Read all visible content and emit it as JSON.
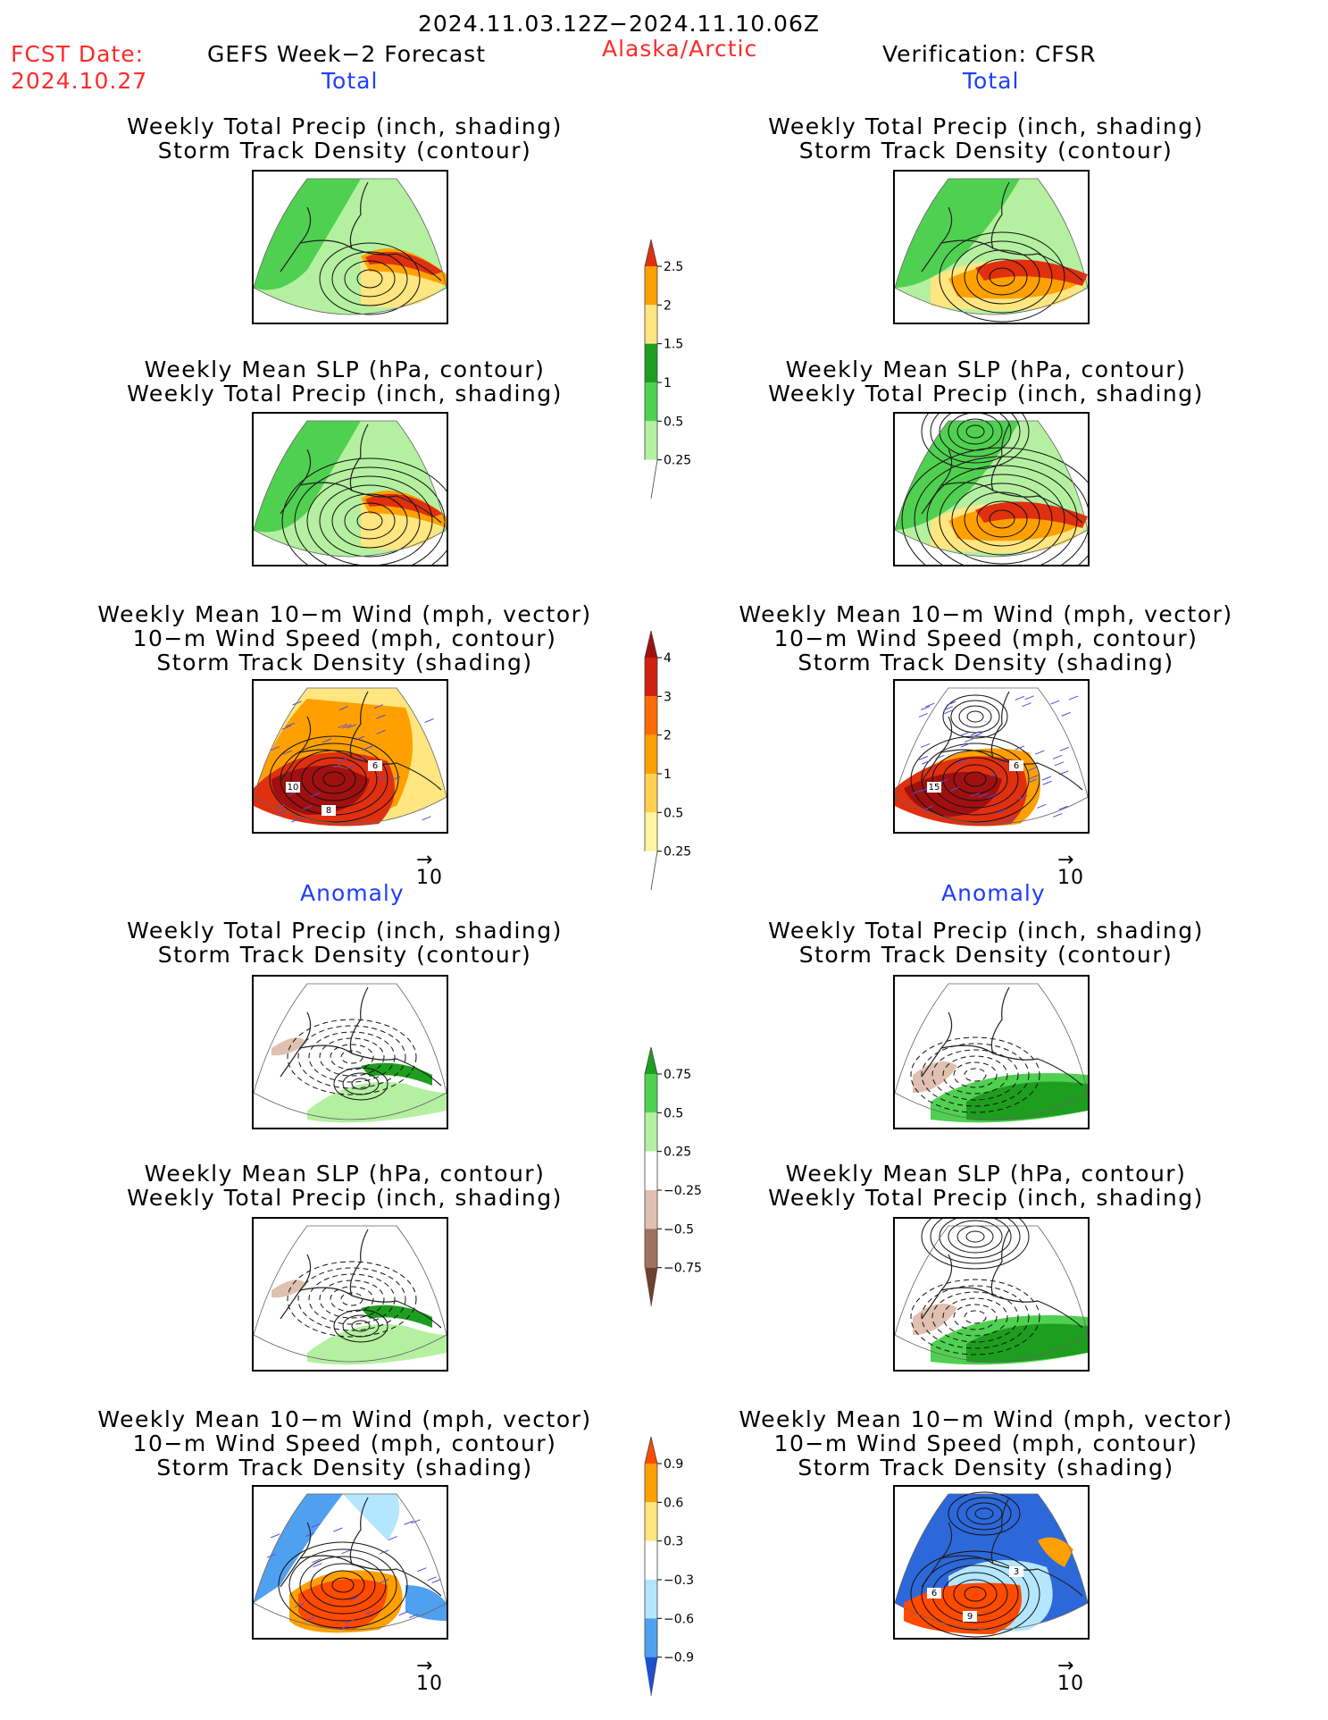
{
  "header": {
    "date_range": "2024.11.03.12Z−2024.11.10.06Z",
    "fcst_label": "FCST Date:",
    "fcst_date": "2024.10.27",
    "model": "GEFS Week−2 Forecast",
    "region": "Alaska/Arctic",
    "verification": "Verification: CFSR"
  },
  "sections": {
    "total": "Total",
    "anomaly": "Anomaly"
  },
  "titles": {
    "precip_track": [
      "Weekly Total Precip (inch, shading)",
      "Storm Track Density (contour)"
    ],
    "slp_precip": [
      "Weekly Mean SLP (hPa, contour)",
      "Weekly Total Precip (inch, shading)"
    ],
    "wind_track": [
      "Weekly Mean 10−m Wind (mph, vector)",
      "10−m Wind Speed (mph, contour)",
      "Storm Track Density (shading)"
    ]
  },
  "vector_ref": {
    "arrow": "→",
    "value": "10"
  },
  "colors": {
    "map_green_light": "#b4f0a0",
    "map_green": "#50d050",
    "map_green_dark": "#1e9e1e",
    "yellow": "#ffe680",
    "orange": "#ffa000",
    "red": "#e03010",
    "darkred": "#a01010",
    "brown_light": "#e0c0b0",
    "brown": "#a07060",
    "blue_light": "#b4e6ff",
    "blue": "#50a0f0",
    "blue_dark": "#1e50d0"
  },
  "chart_data": [
    {
      "type": "heatmap",
      "label": "GEFS total: precip + storm track",
      "colorbar": "precip_total"
    },
    {
      "type": "heatmap",
      "label": "CFSR total: precip + storm track",
      "colorbar": "precip_total"
    },
    {
      "type": "heatmap",
      "label": "GEFS total: SLP + precip",
      "colorbar": "precip_total"
    },
    {
      "type": "heatmap",
      "label": "CFSR total: SLP + precip",
      "colorbar": "precip_total"
    },
    {
      "type": "heatmap",
      "label": "GEFS total: wind + storm track density",
      "colorbar": "track_total",
      "contour_labels": [
        "10",
        "6",
        "8"
      ]
    },
    {
      "type": "heatmap",
      "label": "CFSR total: wind + storm track density",
      "colorbar": "track_total",
      "contour_labels": [
        "15",
        "6"
      ]
    },
    {
      "type": "heatmap",
      "label": "GEFS anomaly: precip + storm track",
      "colorbar": "precip_anom"
    },
    {
      "type": "heatmap",
      "label": "CFSR anomaly: precip + storm track",
      "colorbar": "precip_anom"
    },
    {
      "type": "heatmap",
      "label": "GEFS anomaly: SLP + precip",
      "colorbar": "precip_anom"
    },
    {
      "type": "heatmap",
      "label": "CFSR anomaly: SLP + precip",
      "colorbar": "precip_anom"
    },
    {
      "type": "heatmap",
      "label": "GEFS anomaly: wind + storm track density",
      "colorbar": "track_anom"
    },
    {
      "type": "heatmap",
      "label": "CFSR anomaly: wind + storm track density",
      "colorbar": "track_anom",
      "contour_labels": [
        "6",
        "3",
        "9"
      ]
    }
  ],
  "colorbars": {
    "precip_total": {
      "levels": [
        "0.25",
        "0.5",
        "1",
        "1.5",
        "2",
        "2.5"
      ],
      "colors": [
        "#ffffff",
        "#b4f0a0",
        "#50d050",
        "#1e9e1e",
        "#ffe680",
        "#ffa000",
        "#e03010"
      ]
    },
    "track_total": {
      "levels": [
        "0.25",
        "0.5",
        "1",
        "2",
        "3",
        "4"
      ],
      "colors": [
        "#ffffff",
        "#fff5a0",
        "#ffd050",
        "#ffa000",
        "#ff6a00",
        "#d02010",
        "#a01010"
      ]
    },
    "precip_anom": {
      "levels": [
        "−0.75",
        "−0.5",
        "−0.25",
        "0.25",
        "0.5",
        "0.75"
      ],
      "colors": [
        "#6e4030",
        "#a07060",
        "#e0c0b0",
        "#ffffff",
        "#b4f0a0",
        "#50d050",
        "#1e9e1e"
      ]
    },
    "track_anom": {
      "levels": [
        "−0.9",
        "−0.6",
        "−0.3",
        "0.3",
        "0.6",
        "0.9"
      ],
      "colors": [
        "#1e50d0",
        "#50a0f0",
        "#b4e6ff",
        "#ffffff",
        "#ffe680",
        "#ffa000",
        "#ff4a00"
      ]
    }
  }
}
